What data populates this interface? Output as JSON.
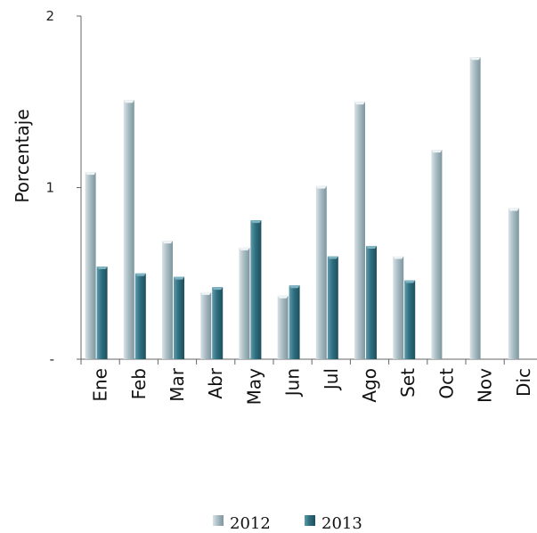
{
  "chart_data": {
    "type": "bar",
    "ylabel": "Porcentaje",
    "ylim": [
      0,
      2
    ],
    "y_ticks": [
      "-",
      "1",
      "2"
    ],
    "categories": [
      "Ene",
      "Feb",
      "Mar",
      "Abr",
      "May",
      "Jun",
      "Jul",
      "Ago",
      "Set",
      "Oct",
      "Nov",
      "Dic"
    ],
    "series": [
      {
        "name": "2012",
        "color": "#9fb4bc",
        "values": [
          1.09,
          1.51,
          0.69,
          0.39,
          0.65,
          0.37,
          1.01,
          1.5,
          0.6,
          1.22,
          1.76,
          0.88
        ]
      },
      {
        "name": "2013",
        "color": "#2f6f80",
        "values": [
          0.54,
          0.5,
          0.48,
          0.42,
          0.81,
          0.43,
          0.6,
          0.66,
          0.46,
          null,
          null,
          null
        ]
      }
    ],
    "legend": "bottom",
    "grid": false
  }
}
